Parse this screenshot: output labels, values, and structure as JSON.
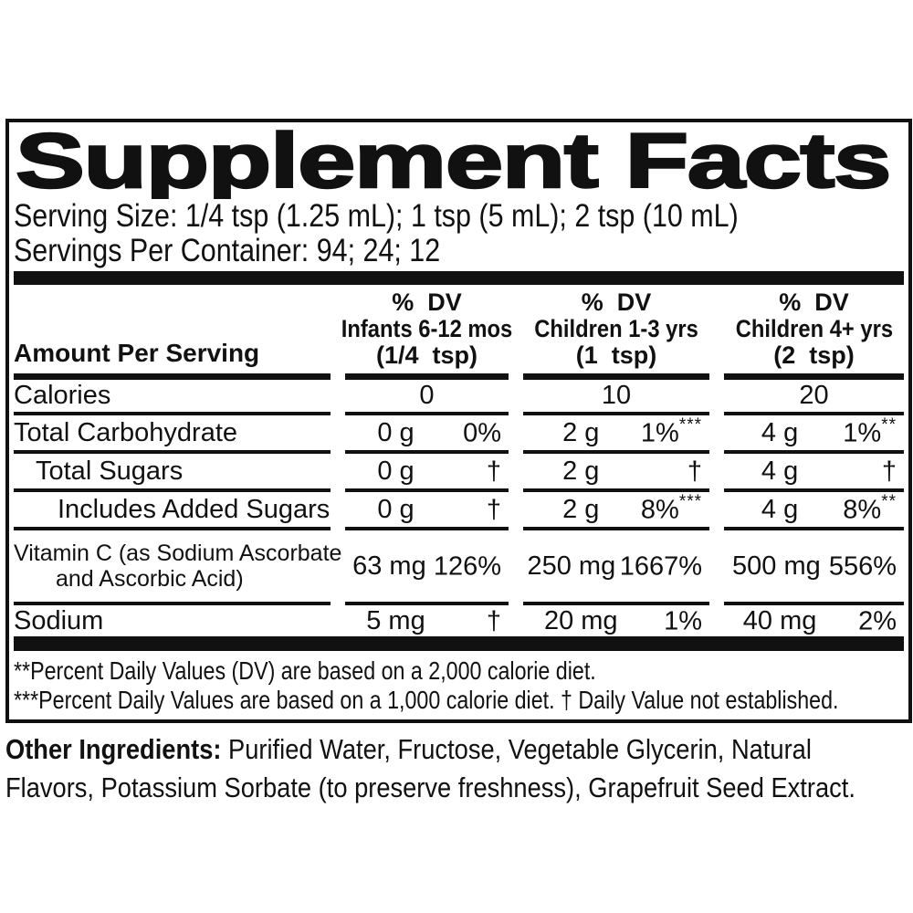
{
  "title": "Supplement Facts",
  "serving": {
    "size": "Serving Size: 1/4 tsp (1.25 mL); 1 tsp (5 mL); 2 tsp (10 mL)",
    "per_container": "Servings Per Container: 94; 24; 12"
  },
  "table": {
    "amount_per_serving_label": "Amount Per Serving",
    "column_headers": [
      {
        "dv_label": "%  DV",
        "group": "Infants 6-12 mos",
        "serving": "(1/4  tsp)"
      },
      {
        "dv_label": "%  DV",
        "group": "Children 1-3 yrs",
        "serving": "(1  tsp)"
      },
      {
        "dv_label": "%  DV",
        "group": "Children 4+ yrs",
        "serving": "(2  tsp)"
      }
    ],
    "rows": [
      {
        "label": "Calories",
        "values": [
          "0",
          "10",
          "20"
        ]
      },
      {
        "label": "Total Carbohydrate",
        "cells": [
          {
            "amount": "0 g",
            "dv": "0%",
            "note": ""
          },
          {
            "amount": "2 g",
            "dv": "1%",
            "note": "***"
          },
          {
            "amount": "4 g",
            "dv": "1%",
            "note": "**"
          }
        ]
      },
      {
        "label": "Total Sugars",
        "cells": [
          {
            "amount": "0 g",
            "dv": "†",
            "note": ""
          },
          {
            "amount": "2 g",
            "dv": "†",
            "note": ""
          },
          {
            "amount": "4 g",
            "dv": "†",
            "note": ""
          }
        ]
      },
      {
        "label": "Includes Added Sugars",
        "cells": [
          {
            "amount": "0 g",
            "dv": "†",
            "note": ""
          },
          {
            "amount": "2 g",
            "dv": "8%",
            "note": "***"
          },
          {
            "amount": "4 g",
            "dv": "8%",
            "note": "**"
          }
        ]
      },
      {
        "label_line1": "Vitamin C (as Sodium Ascorbate",
        "label_line2": "and Ascorbic Acid)",
        "cells": [
          {
            "amount": "63 mg",
            "dv": "126%",
            "note": ""
          },
          {
            "amount": "250 mg",
            "dv": "1667%",
            "note": ""
          },
          {
            "amount": "500 mg",
            "dv": "556%",
            "note": ""
          }
        ]
      },
      {
        "label": "Sodium",
        "cells": [
          {
            "amount": "5 mg",
            "dv": "†",
            "note": ""
          },
          {
            "amount": "20 mg",
            "dv": "1%",
            "note": ""
          },
          {
            "amount": "40 mg",
            "dv": "2%",
            "note": ""
          }
        ]
      }
    ]
  },
  "footnotes": [
    {
      "marker": "**",
      "text": "Percent Daily Values (DV) are based on a 2,000 calorie diet."
    },
    {
      "marker": "***",
      "text": "Percent Daily Values are based on a 1,000 calorie diet. † Daily Value not established."
    }
  ],
  "other_ingredients": {
    "label": "Other Ingredients:",
    "line1": " Purified Water, Fructose, Vegetable Glycerin, Natural",
    "line2": "Flavors, Potassium Sorbate (to preserve freshness), Grapefruit Seed Extract."
  },
  "colors": {
    "ink": "#111111",
    "background": "#ffffff"
  }
}
